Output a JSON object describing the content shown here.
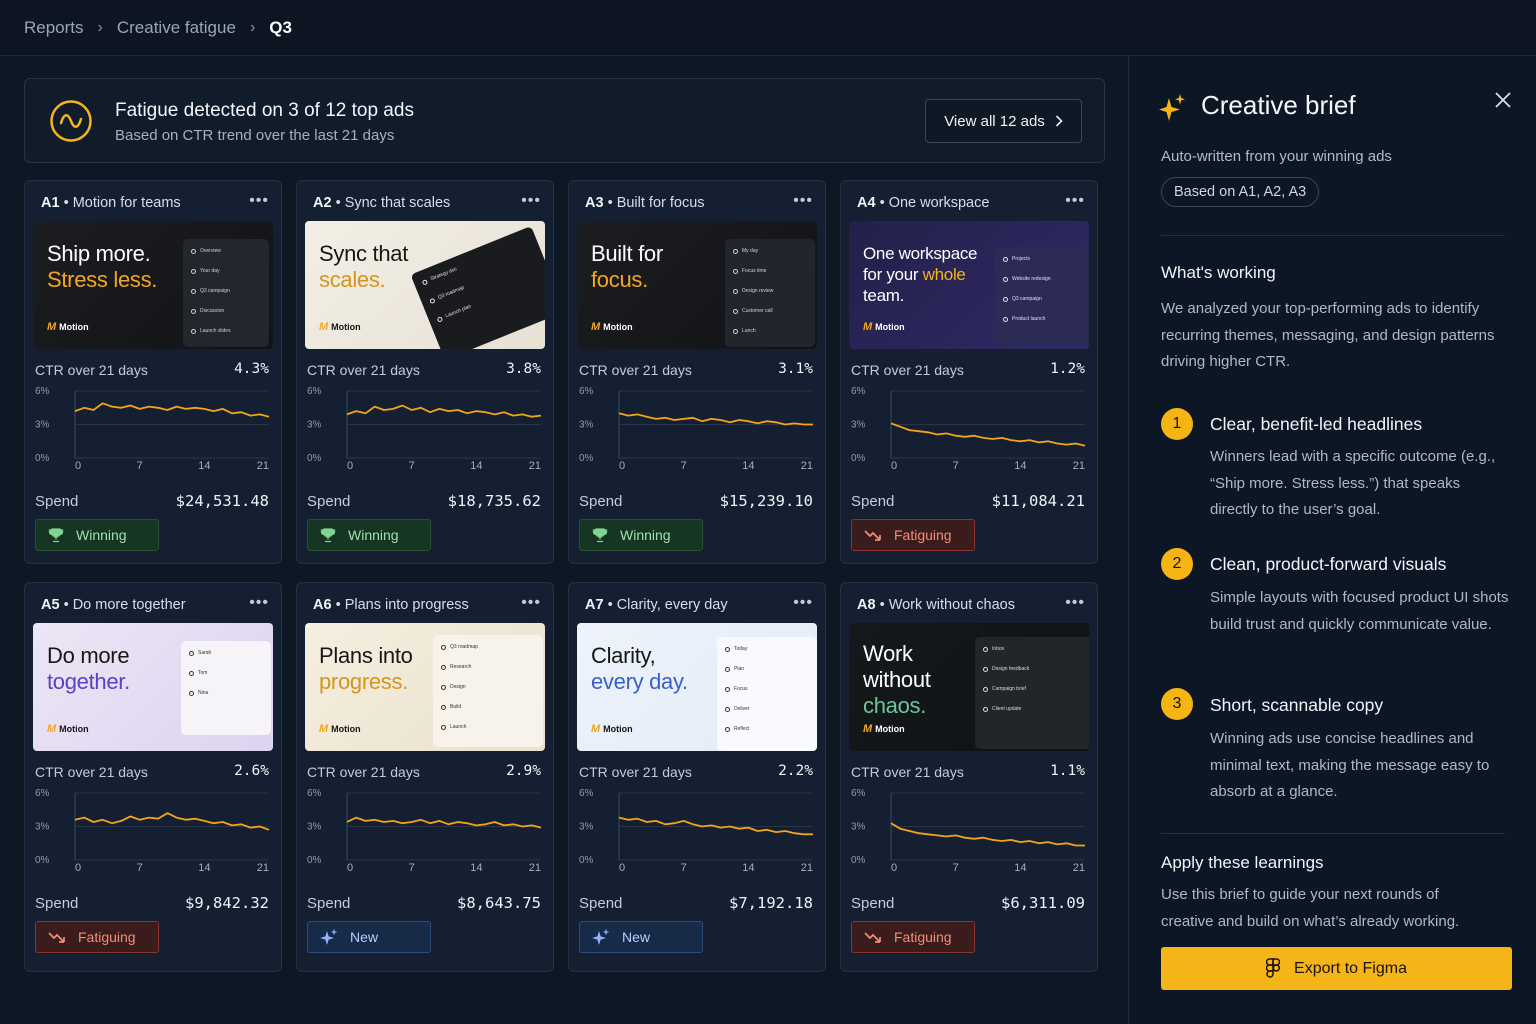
{
  "breadcrumb": [
    "Reports",
    "Creative fatigue",
    "Q3"
  ],
  "alert": {
    "title": "Fatigue detected on 3 of 12 top ads",
    "subtitle": "Based on CTR trend over the last 21 days",
    "button": "View all 12 ads"
  },
  "labels": {
    "ctr": "CTR over 21 days",
    "spend": "Spend"
  },
  "ads": [
    {
      "id": "A1",
      "name": "Motion for teams",
      "ctr": "4.3%",
      "spend": "$24,531.48",
      "status": "Winning",
      "status_type": "win",
      "thumb": {
        "line1": "Ship more.",
        "line2": "Stress less.",
        "brand": "Motion",
        "rows": [
          "Overview",
          "Your day",
          "Q3 campaign",
          "Discussion",
          "Launch slides"
        ]
      },
      "chart_data": {
        "type": "line",
        "x": [
          0,
          1,
          2,
          3,
          4,
          5,
          6,
          7,
          8,
          9,
          10,
          11,
          12,
          13,
          14,
          15,
          16,
          17,
          18,
          19,
          20,
          21
        ],
        "y": [
          4.2,
          4.5,
          4.3,
          4.9,
          4.6,
          4.5,
          4.7,
          4.4,
          4.6,
          4.5,
          4.3,
          4.6,
          4.4,
          4.5,
          4.4,
          4.2,
          4.4,
          4.0,
          4.1,
          3.8,
          3.9,
          3.7
        ],
        "yticks": [
          "6%",
          "3%",
          "0%"
        ],
        "xticks": [
          "0",
          "7",
          "14",
          "21"
        ],
        "ylim": [
          0,
          6
        ]
      }
    },
    {
      "id": "A2",
      "name": "Sync that scales",
      "ctr": "3.8%",
      "spend": "$18,735.62",
      "status": "Winning",
      "status_type": "win",
      "thumb": {
        "line1": "Sync that",
        "line2": "scales.",
        "brand": "Motion",
        "rows": [
          "Strategy doc",
          "Q3 roadmap",
          "Launch plan"
        ]
      },
      "chart_data": {
        "type": "line",
        "x": [
          0,
          1,
          2,
          3,
          4,
          5,
          6,
          7,
          8,
          9,
          10,
          11,
          12,
          13,
          14,
          15,
          16,
          17,
          18,
          19,
          20,
          21
        ],
        "y": [
          3.9,
          4.2,
          4.0,
          4.6,
          4.3,
          4.4,
          4.7,
          4.3,
          4.5,
          4.1,
          4.4,
          4.2,
          4.3,
          4.0,
          4.2,
          4.1,
          3.9,
          4.1,
          3.8,
          3.9,
          3.7,
          3.8
        ],
        "yticks": [
          "6%",
          "3%",
          "0%"
        ],
        "xticks": [
          "0",
          "7",
          "14",
          "21"
        ],
        "ylim": [
          0,
          6
        ]
      }
    },
    {
      "id": "A3",
      "name": "Built for focus",
      "ctr": "3.1%",
      "spend": "$15,239.10",
      "status": "Winning",
      "status_type": "win",
      "thumb": {
        "line1": "Built for",
        "line2": "focus.",
        "brand": "Motion",
        "rows": [
          "My day",
          "Focus time",
          "Design review",
          "Customer call",
          "Lunch"
        ]
      },
      "chart_data": {
        "type": "line",
        "x": [
          0,
          1,
          2,
          3,
          4,
          5,
          6,
          7,
          8,
          9,
          10,
          11,
          12,
          13,
          14,
          15,
          16,
          17,
          18,
          19,
          20,
          21
        ],
        "y": [
          4.0,
          3.8,
          3.9,
          3.7,
          3.5,
          3.6,
          3.4,
          3.5,
          3.6,
          3.3,
          3.5,
          3.4,
          3.2,
          3.4,
          3.3,
          3.1,
          3.3,
          3.2,
          3.0,
          3.1,
          3.0,
          3.0
        ],
        "yticks": [
          "6%",
          "3%",
          "0%"
        ],
        "xticks": [
          "0",
          "7",
          "14",
          "21"
        ],
        "ylim": [
          0,
          6
        ]
      }
    },
    {
      "id": "A4",
      "name": "One workspace",
      "ctr": "1.2%",
      "spend": "$11,084.21",
      "status": "Fatiguing",
      "status_type": "fat",
      "thumb": {
        "line1": "One workspace",
        "line2": "for your ",
        "line2b": "whole",
        "line3": "team.",
        "brand": "Motion",
        "rows": [
          "Projects",
          "Website redesign",
          "Q3 campaign",
          "Product launch"
        ]
      },
      "chart_data": {
        "type": "line",
        "x": [
          0,
          1,
          2,
          3,
          4,
          5,
          6,
          7,
          8,
          9,
          10,
          11,
          12,
          13,
          14,
          15,
          16,
          17,
          18,
          19,
          20,
          21
        ],
        "y": [
          3.1,
          2.8,
          2.5,
          2.4,
          2.3,
          2.1,
          2.2,
          2.0,
          1.9,
          2.0,
          1.8,
          1.7,
          1.8,
          1.6,
          1.5,
          1.6,
          1.4,
          1.5,
          1.3,
          1.2,
          1.3,
          1.1
        ],
        "yticks": [
          "6%",
          "3%",
          "0%"
        ],
        "xticks": [
          "0",
          "7",
          "14",
          "21"
        ],
        "ylim": [
          0,
          6
        ]
      }
    },
    {
      "id": "A5",
      "name": "Do more together",
      "ctr": "2.6%",
      "spend": "$9,842.32",
      "status": "Fatiguing",
      "status_type": "fat",
      "thumb": {
        "line1": "Do more",
        "line2": "together.",
        "brand": "Motion",
        "rows": [
          "Sarah",
          "Tom",
          "Nina"
        ]
      },
      "chart_data": {
        "type": "line",
        "x": [
          0,
          1,
          2,
          3,
          4,
          5,
          6,
          7,
          8,
          9,
          10,
          11,
          12,
          13,
          14,
          15,
          16,
          17,
          18,
          19,
          20,
          21
        ],
        "y": [
          3.6,
          3.8,
          3.4,
          3.6,
          3.3,
          3.5,
          3.9,
          3.6,
          3.8,
          3.7,
          4.2,
          3.8,
          3.6,
          3.7,
          3.5,
          3.3,
          3.4,
          3.1,
          3.2,
          2.9,
          3.0,
          2.7
        ],
        "yticks": [
          "6%",
          "3%",
          "0%"
        ],
        "xticks": [
          "0",
          "7",
          "14",
          "21"
        ],
        "ylim": [
          0,
          6
        ]
      }
    },
    {
      "id": "A6",
      "name": "Plans into progress",
      "ctr": "2.9%",
      "spend": "$8,643.75",
      "status": "New",
      "status_type": "new",
      "thumb": {
        "line1": "Plans into",
        "line2": "progress.",
        "brand": "Motion",
        "rows": [
          "Q3 roadmap",
          "Research",
          "Design",
          "Build",
          "Launch"
        ]
      },
      "chart_data": {
        "type": "line",
        "x": [
          0,
          1,
          2,
          3,
          4,
          5,
          6,
          7,
          8,
          9,
          10,
          11,
          12,
          13,
          14,
          15,
          16,
          17,
          18,
          19,
          20,
          21
        ],
        "y": [
          3.4,
          3.8,
          3.5,
          3.6,
          3.4,
          3.5,
          3.3,
          3.4,
          3.6,
          3.3,
          3.5,
          3.2,
          3.4,
          3.3,
          3.1,
          3.2,
          3.4,
          3.1,
          3.2,
          3.0,
          3.1,
          2.9
        ],
        "yticks": [
          "6%",
          "3%",
          "0%"
        ],
        "xticks": [
          "0",
          "7",
          "14",
          "21"
        ],
        "ylim": [
          0,
          6
        ]
      }
    },
    {
      "id": "A7",
      "name": "Clarity, every day",
      "ctr": "2.2%",
      "spend": "$7,192.18",
      "status": "New",
      "status_type": "new",
      "thumb": {
        "line1": "Clarity,",
        "line2": "every day.",
        "brand": "Motion",
        "rows": [
          "Today",
          "Plan",
          "Focus",
          "Deliver",
          "Reflect"
        ]
      },
      "chart_data": {
        "type": "line",
        "x": [
          0,
          1,
          2,
          3,
          4,
          5,
          6,
          7,
          8,
          9,
          10,
          11,
          12,
          13,
          14,
          15,
          16,
          17,
          18,
          19,
          20,
          21
        ],
        "y": [
          3.8,
          3.6,
          3.7,
          3.4,
          3.5,
          3.2,
          3.3,
          3.5,
          3.2,
          3.0,
          3.1,
          2.9,
          3.0,
          2.8,
          2.9,
          2.6,
          2.7,
          2.5,
          2.6,
          2.4,
          2.3,
          2.3
        ],
        "yticks": [
          "6%",
          "3%",
          "0%"
        ],
        "xticks": [
          "0",
          "7",
          "14",
          "21"
        ],
        "ylim": [
          0,
          6
        ]
      }
    },
    {
      "id": "A8",
      "name": "Work without chaos",
      "ctr": "1.1%",
      "spend": "$6,311.09",
      "status": "Fatiguing",
      "status_type": "fat",
      "thumb": {
        "line1": "Work",
        "line2": "without",
        "line3": "chaos.",
        "brand": "Motion",
        "rows": [
          "Inbox",
          "Design feedback",
          "Campaign brief",
          "Client update"
        ]
      },
      "chart_data": {
        "type": "line",
        "x": [
          0,
          1,
          2,
          3,
          4,
          5,
          6,
          7,
          8,
          9,
          10,
          11,
          12,
          13,
          14,
          15,
          16,
          17,
          18,
          19,
          20,
          21
        ],
        "y": [
          3.3,
          2.8,
          2.6,
          2.4,
          2.3,
          2.2,
          2.1,
          2.2,
          2.0,
          1.9,
          2.0,
          1.8,
          1.7,
          1.8,
          1.6,
          1.7,
          1.5,
          1.6,
          1.4,
          1.5,
          1.3,
          1.3
        ],
        "yticks": [
          "6%",
          "3%",
          "0%"
        ],
        "xticks": [
          "0",
          "7",
          "14",
          "21"
        ],
        "ylim": [
          0,
          6
        ]
      }
    }
  ],
  "panel": {
    "title": "Creative brief",
    "subtitle": "Auto-written from your winning ads",
    "chip": "Based on A1, A2, A3",
    "whats_working": "What's working",
    "intro": "We analyzed your top-performing ads to identify recurring themes, messaging, and design patterns driving higher CTR.",
    "learnings": [
      {
        "num": "1",
        "title": "Clear, benefit-led headlines",
        "text": "Winners lead with a specific outcome (e.g., “Ship more. Stress less.”) that speaks directly to the user’s goal."
      },
      {
        "num": "2",
        "title": "Clean, product-forward visuals",
        "text": "Simple layouts with focused product UI shots build trust and quickly communicate value."
      },
      {
        "num": "3",
        "title": "Short, scannable copy",
        "text": "Winning ads use concise headlines and minimal text, making the message easy to absorb at a glance."
      }
    ],
    "apply_title": "Apply these learnings",
    "apply_text": "Use this brief to guide your next rounds of creative and build on what’s already working.",
    "export_button": "Export to Figma"
  },
  "colors": {
    "accent": "#f5b418",
    "line": "#f2a516",
    "win": "#9fe0ae",
    "fatigue": "#f48d72",
    "new": "#b4ceff"
  },
  "icons": {
    "alert": "wave-circle-icon",
    "win": "trophy-icon",
    "fat": "trend-down-icon",
    "new": "sparkle-icon",
    "panel": "sparkle-icon",
    "close": "close-icon",
    "export": "figma-icon"
  }
}
